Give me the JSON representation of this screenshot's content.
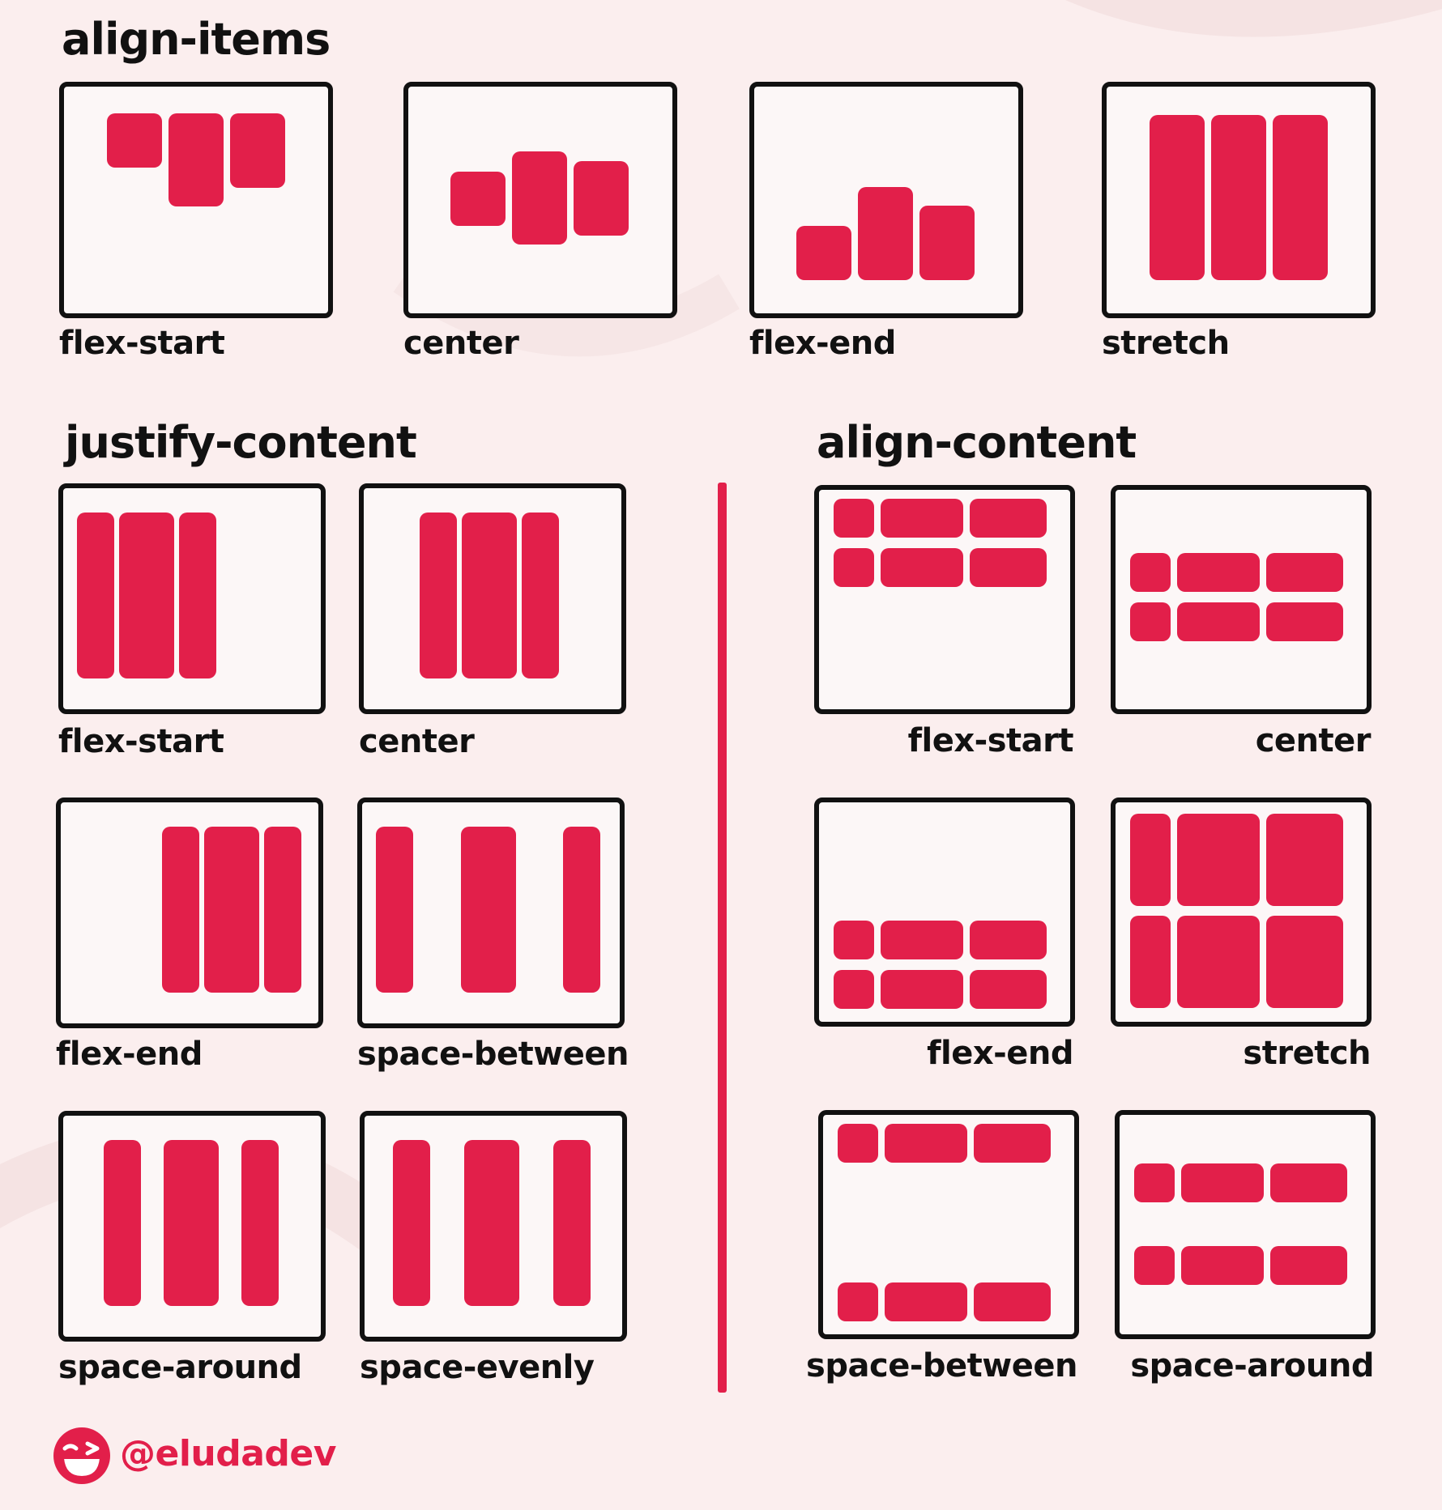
{
  "colors": {
    "item": "#e21f4a",
    "border": "#111111",
    "panel_bg": "#fcf7f7",
    "page_bg": "#fbeeee",
    "accent": "#e21f4a"
  },
  "sections": {
    "align_items": {
      "title": "align-items",
      "labels": [
        "flex-start",
        "center",
        "flex-end",
        "stretch"
      ]
    },
    "justify_content": {
      "title": "justify-content",
      "labels": [
        "flex-start",
        "center",
        "flex-end",
        "space-between",
        "space-around",
        "space-evenly"
      ]
    },
    "align_content": {
      "title": "align-content",
      "labels": [
        "flex-start",
        "center",
        "flex-end",
        "stretch",
        "space-between",
        "space-around"
      ]
    }
  },
  "footer": {
    "handle": "@eludadev",
    "logo_icon": "winking-face-icon"
  }
}
